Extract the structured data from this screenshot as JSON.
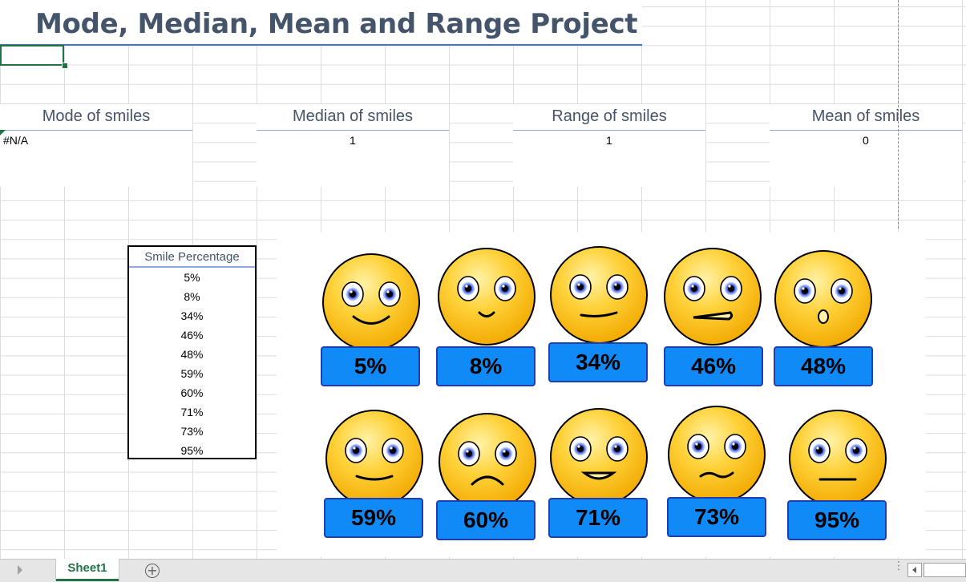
{
  "title": "Mode, Median, Mean and Range Project",
  "stats": [
    {
      "heading": "Mode of smiles",
      "value": "#N/A"
    },
    {
      "heading": "Median of smiles",
      "value": "1"
    },
    {
      "heading": "Range of smiles",
      "value": "1"
    },
    {
      "heading": "Mean of smiles",
      "value": "0"
    }
  ],
  "table": {
    "header": "Smile Percentage",
    "rows": [
      "5%",
      "8%",
      "34%",
      "46%",
      "48%",
      "59%",
      "60%",
      "71%",
      "73%",
      "95%"
    ]
  },
  "faces": [
    {
      "label": "5%",
      "mouth": "smile"
    },
    {
      "label": "8%",
      "mouth": "small-smile"
    },
    {
      "label": "34%",
      "mouth": "smirk"
    },
    {
      "label": "46%",
      "mouth": "tongue"
    },
    {
      "label": "48%",
      "mouth": "o-shape"
    },
    {
      "label": "59%",
      "mouth": "slight-smile"
    },
    {
      "label": "60%",
      "mouth": "frown"
    },
    {
      "label": "71%",
      "mouth": "grin"
    },
    {
      "label": "73%",
      "mouth": "wavy"
    },
    {
      "label": "95%",
      "mouth": "flat"
    }
  ],
  "sheet_tab": "Sheet1",
  "add_sheet": "+",
  "colors": {
    "face_fill": "#ffc81e",
    "face_highlight": "#fff2a8",
    "label_fill": "#0f8af7",
    "label_border": "#1f3fae",
    "title": "#44546a",
    "accent": "#217346"
  }
}
